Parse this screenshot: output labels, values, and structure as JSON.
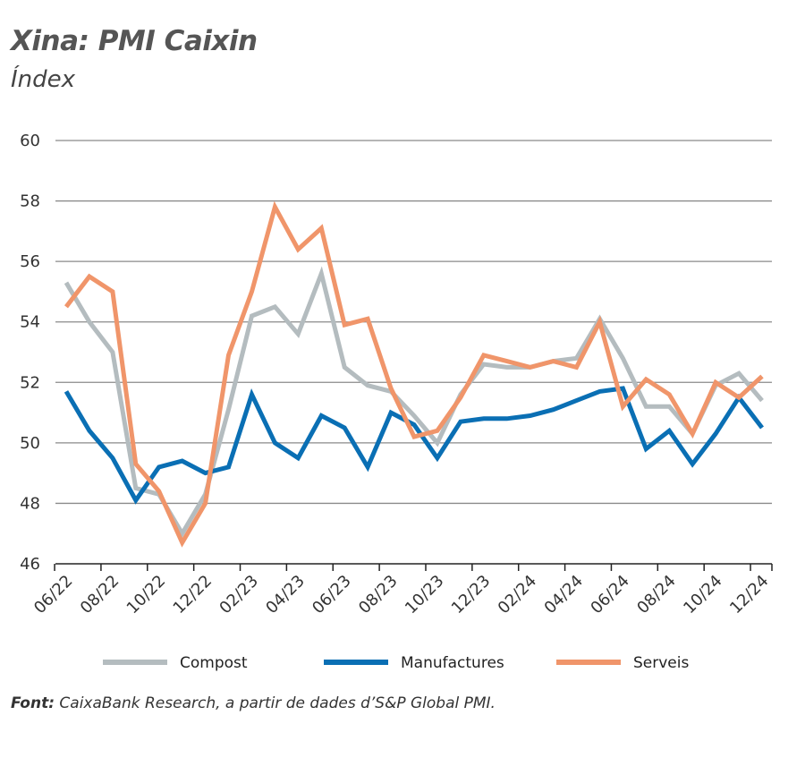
{
  "chart_data": {
    "type": "line",
    "title": "Xina: PMI Caixin",
    "subtitle": "Índex",
    "source_label": "Font:",
    "source_text": "CaixaBank Research, a partir de dades d’S&P Global PMI.",
    "ylim": [
      46,
      60
    ],
    "yticks": [
      46,
      48,
      50,
      52,
      54,
      56,
      58,
      60
    ],
    "grid": true,
    "legend_position": "bottom",
    "x": [
      "06/22",
      "07/22",
      "08/22",
      "09/22",
      "10/22",
      "11/22",
      "12/22",
      "01/23",
      "02/23",
      "03/23",
      "04/23",
      "05/23",
      "06/23",
      "07/23",
      "08/23",
      "09/23",
      "10/23",
      "11/23",
      "12/23",
      "01/24",
      "02/24",
      "03/24",
      "04/24",
      "05/24",
      "06/24",
      "07/24",
      "08/24",
      "09/24",
      "10/24",
      "11/24",
      "12/24"
    ],
    "xtick_labels": [
      "06/22",
      "08/22",
      "10/22",
      "12/22",
      "02/23",
      "04/23",
      "06/23",
      "08/23",
      "10/23",
      "12/23",
      "02/24",
      "04/24",
      "06/24",
      "08/24",
      "10/24",
      "12/24"
    ],
    "series": [
      {
        "name": "Compost",
        "color": "#b4bcbf",
        "values": [
          55.3,
          54.0,
          53.0,
          48.5,
          48.3,
          47.0,
          48.3,
          51.1,
          54.2,
          54.5,
          53.6,
          55.6,
          52.5,
          51.9,
          51.7,
          50.9,
          50.0,
          51.6,
          52.6,
          52.5,
          52.5,
          52.7,
          52.8,
          54.1,
          52.8,
          51.2,
          51.2,
          50.3,
          51.9,
          52.3,
          51.4
        ]
      },
      {
        "name": "Manufactures",
        "color": "#0a6fb4",
        "values": [
          51.7,
          50.4,
          49.5,
          48.1,
          49.2,
          49.4,
          49.0,
          49.2,
          51.6,
          50.0,
          49.5,
          50.9,
          50.5,
          49.2,
          51.0,
          50.6,
          49.5,
          50.7,
          50.8,
          50.8,
          50.9,
          51.1,
          51.4,
          51.7,
          51.8,
          49.8,
          50.4,
          49.3,
          50.3,
          51.5,
          50.5
        ]
      },
      {
        "name": "Serveis",
        "color": "#f0956a",
        "values": [
          54.5,
          55.5,
          55.0,
          49.3,
          48.4,
          46.7,
          48.0,
          52.9,
          55.0,
          57.8,
          56.4,
          57.1,
          53.9,
          54.1,
          51.8,
          50.2,
          50.4,
          51.5,
          52.9,
          52.7,
          52.5,
          52.7,
          52.5,
          54.0,
          51.2,
          52.1,
          51.6,
          50.3,
          52.0,
          51.5,
          52.2
        ]
      }
    ]
  }
}
